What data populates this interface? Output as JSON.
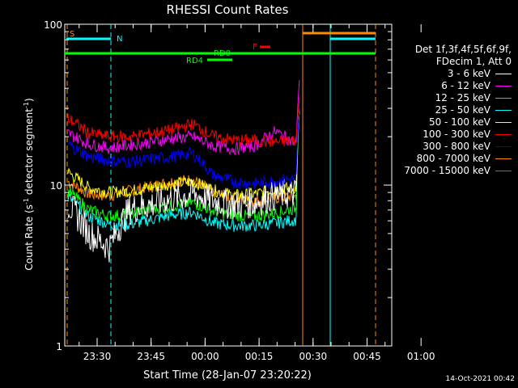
{
  "chart_data": {
    "type": "line",
    "title": "RHESSI Count Rates",
    "xlabel": "Start Time (28-Jan-07 23:20:22)",
    "ylabel_parts": [
      "Count Rate (s",
      "-1",
      " detector segment",
      "-1",
      ")"
    ],
    "y_scale": "log",
    "ylim": [
      1,
      100
    ],
    "y_ticks": [
      {
        "v": 1,
        "label": "1"
      },
      {
        "v": 10,
        "label": "10"
      },
      {
        "v": 100,
        "label": "100"
      }
    ],
    "x_ticks": [
      "23:30",
      "23:45",
      "00:00",
      "00:15",
      "00:30",
      "00:45",
      "01:00"
    ],
    "grid": false,
    "legend_position": "right",
    "legend_header": [
      "Det 1f,3f,4f,5f,6f,9f,",
      "FDecim 1, Att 0"
    ],
    "series": [
      {
        "name": "3 - 6 keV",
        "color": "#ffffff",
        "values": [
          7.6,
          5.0,
          4.1,
          7.1,
          7.6,
          8.2,
          8.8,
          8.0,
          7.5,
          7.8,
          8.6,
          8.9
        ]
      },
      {
        "name": "6 - 12 keV",
        "color": "#ff00ff",
        "values": [
          21.0,
          18.0,
          17.0,
          17.8,
          18.5,
          19.5,
          20.0,
          17.5,
          16.8,
          17.5,
          21.5,
          18.0
        ]
      },
      {
        "name": "12 - 25 keV",
        "color": "#00ff00",
        "values": [
          9.2,
          7.0,
          6.4,
          6.6,
          7.1,
          7.4,
          7.8,
          6.9,
          6.5,
          6.4,
          6.7,
          7.2
        ]
      },
      {
        "name": "25 - 50 keV",
        "color": "#00ffff",
        "values": [
          8.4,
          6.4,
          5.7,
          5.7,
          6.1,
          6.5,
          6.8,
          5.8,
          5.6,
          5.6,
          5.8,
          6.1
        ]
      },
      {
        "name": "50 - 100 keV",
        "color": "#ffff00",
        "values": [
          12.0,
          9.6,
          9.0,
          9.2,
          9.7,
          10.2,
          10.5,
          9.3,
          8.6,
          8.8,
          9.4,
          9.6
        ]
      },
      {
        "name": "100 - 300 keV",
        "color": "#ff0000",
        "values": [
          26.0,
          21.0,
          20.0,
          20.0,
          21.0,
          22.0,
          24.0,
          20.0,
          19.0,
          19.0,
          18.5,
          19.0
        ]
      },
      {
        "name": "300 - 800 keV",
        "color": "#0000ff",
        "values": [
          18.0,
          15.0,
          14.2,
          14.0,
          14.5,
          15.0,
          15.8,
          11.5,
          10.5,
          10.2,
          10.6,
          11.0
        ]
      },
      {
        "name": "800 - 7000 keV",
        "color": "#ff8c00",
        "values": [
          10.5,
          8.8,
          8.6,
          9.2,
          9.8,
          10.5,
          10.8,
          9.0,
          8.2,
          8.0,
          8.3,
          8.6
        ]
      },
      {
        "name": "7000 - 15000 keV",
        "color": "#808000",
        "values": []
      }
    ],
    "annotations": [
      {
        "label": "S",
        "color": "#ff8c00"
      },
      {
        "label": "N",
        "color": "#00ffff"
      },
      {
        "label": "RD0",
        "color": "#00ff00"
      },
      {
        "label": "RD4",
        "color": "#00ff00"
      },
      {
        "label": "F",
        "color": "#ff0000"
      }
    ]
  },
  "footer_stamp": "14-Oct-2021 00:42"
}
